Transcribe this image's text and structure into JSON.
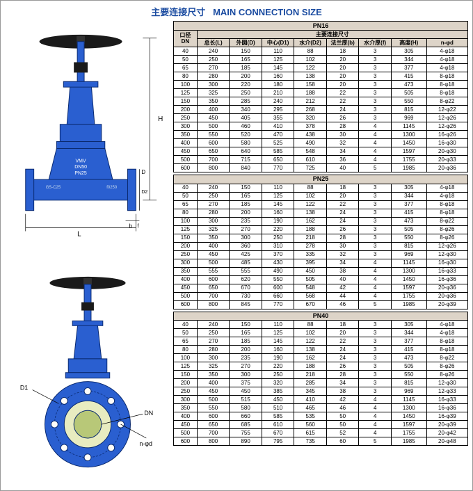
{
  "title_cn": "主要连接尺寸",
  "title_en": "MAIN CONNECTION SIZE",
  "diagram": {
    "labels": {
      "H": "H",
      "L": "L",
      "D": "D",
      "D1": "D1",
      "D2": "D2",
      "DN": "DN",
      "nphi": "n-φd"
    },
    "body_text": [
      "VMV",
      "DN50",
      "PN25"
    ],
    "cast_mark": "GS-C25",
    "flange_mark": "f0250",
    "valve_color": "#2a5fd0",
    "wheel_color": "#1a1a1a",
    "bg": "#fefcf8"
  },
  "header": {
    "dn_cn": "口径",
    "dn_en": "DN",
    "group_cn": "主要连接尺寸",
    "cols": [
      "总长(L)",
      "外圆(D)",
      "中心(D1)",
      "水介(D2)",
      "法兰厚(b)",
      "水介厚(f)",
      "高度(H)",
      "n-φd"
    ]
  },
  "sections": [
    {
      "name": "PN16",
      "rows": [
        [
          "40",
          "240",
          "150",
          "110",
          "88",
          "18",
          "3",
          "305",
          "4-φ18"
        ],
        [
          "50",
          "250",
          "165",
          "125",
          "102",
          "20",
          "3",
          "344",
          "4-φ18"
        ],
        [
          "65",
          "270",
          "185",
          "145",
          "122",
          "20",
          "3",
          "377",
          "4-φ18"
        ],
        [
          "80",
          "280",
          "200",
          "160",
          "138",
          "20",
          "3",
          "415",
          "8-φ18"
        ],
        [
          "100",
          "300",
          "220",
          "180",
          "158",
          "20",
          "3",
          "473",
          "8-φ18"
        ],
        [
          "125",
          "325",
          "250",
          "210",
          "188",
          "22",
          "3",
          "505",
          "8-φ18"
        ],
        [
          "150",
          "350",
          "285",
          "240",
          "212",
          "22",
          "3",
          "550",
          "8-φ22"
        ],
        [
          "200",
          "400",
          "340",
          "295",
          "268",
          "24",
          "3",
          "815",
          "12-φ22"
        ],
        [
          "250",
          "450",
          "405",
          "355",
          "320",
          "26",
          "3",
          "969",
          "12-φ26"
        ],
        [
          "300",
          "500",
          "460",
          "410",
          "378",
          "28",
          "4",
          "1145",
          "12-φ26"
        ],
        [
          "350",
          "550",
          "520",
          "470",
          "438",
          "30",
          "4",
          "1300",
          "16-φ26"
        ],
        [
          "400",
          "600",
          "580",
          "525",
          "490",
          "32",
          "4",
          "1450",
          "16-φ30"
        ],
        [
          "450",
          "650",
          "640",
          "585",
          "548",
          "34",
          "4",
          "1597",
          "20-φ30"
        ],
        [
          "500",
          "700",
          "715",
          "650",
          "610",
          "36",
          "4",
          "1755",
          "20-φ33"
        ],
        [
          "600",
          "800",
          "840",
          "770",
          "725",
          "40",
          "5",
          "1985",
          "20-φ36"
        ]
      ]
    },
    {
      "name": "PN25",
      "rows": [
        [
          "40",
          "240",
          "150",
          "110",
          "88",
          "18",
          "3",
          "305",
          "4-φ18"
        ],
        [
          "50",
          "250",
          "165",
          "125",
          "102",
          "20",
          "3",
          "344",
          "4-φ18"
        ],
        [
          "65",
          "270",
          "185",
          "145",
          "122",
          "22",
          "3",
          "377",
          "8-φ18"
        ],
        [
          "80",
          "280",
          "200",
          "160",
          "138",
          "24",
          "3",
          "415",
          "8-φ18"
        ],
        [
          "100",
          "300",
          "235",
          "190",
          "162",
          "24",
          "3",
          "473",
          "8-φ22"
        ],
        [
          "125",
          "325",
          "270",
          "220",
          "188",
          "26",
          "3",
          "505",
          "8-φ26"
        ],
        [
          "150",
          "350",
          "300",
          "250",
          "218",
          "28",
          "3",
          "550",
          "8-φ26"
        ],
        [
          "200",
          "400",
          "360",
          "310",
          "278",
          "30",
          "3",
          "815",
          "12-φ26"
        ],
        [
          "250",
          "450",
          "425",
          "370",
          "335",
          "32",
          "3",
          "969",
          "12-φ30"
        ],
        [
          "300",
          "500",
          "485",
          "430",
          "395",
          "34",
          "4",
          "1145",
          "16-φ30"
        ],
        [
          "350",
          "555",
          "555",
          "490",
          "450",
          "38",
          "4",
          "1300",
          "16-φ33"
        ],
        [
          "400",
          "600",
          "620",
          "550",
          "505",
          "40",
          "4",
          "1450",
          "16-φ36"
        ],
        [
          "450",
          "650",
          "670",
          "600",
          "548",
          "42",
          "4",
          "1597",
          "20-φ36"
        ],
        [
          "500",
          "700",
          "730",
          "660",
          "568",
          "44",
          "4",
          "1755",
          "20-φ36"
        ],
        [
          "600",
          "800",
          "845",
          "770",
          "670",
          "46",
          "5",
          "1985",
          "20-φ39"
        ]
      ]
    },
    {
      "name": "PN40",
      "rows": [
        [
          "40",
          "240",
          "150",
          "110",
          "88",
          "18",
          "3",
          "305",
          "4-φ18"
        ],
        [
          "50",
          "250",
          "165",
          "125",
          "102",
          "20",
          "3",
          "344",
          "4-φ18"
        ],
        [
          "65",
          "270",
          "185",
          "145",
          "122",
          "22",
          "3",
          "377",
          "8-φ18"
        ],
        [
          "80",
          "280",
          "200",
          "160",
          "138",
          "24",
          "3",
          "415",
          "8-φ18"
        ],
        [
          "100",
          "300",
          "235",
          "190",
          "162",
          "24",
          "3",
          "473",
          "8-φ22"
        ],
        [
          "125",
          "325",
          "270",
          "220",
          "188",
          "26",
          "3",
          "505",
          "8-φ26"
        ],
        [
          "150",
          "350",
          "300",
          "250",
          "218",
          "28",
          "3",
          "550",
          "8-φ26"
        ],
        [
          "200",
          "400",
          "375",
          "320",
          "285",
          "34",
          "3",
          "815",
          "12-φ30"
        ],
        [
          "250",
          "450",
          "450",
          "385",
          "345",
          "38",
          "3",
          "969",
          "12-φ33"
        ],
        [
          "300",
          "500",
          "515",
          "450",
          "410",
          "42",
          "4",
          "1145",
          "16-φ33"
        ],
        [
          "350",
          "550",
          "580",
          "510",
          "465",
          "46",
          "4",
          "1300",
          "16-φ36"
        ],
        [
          "400",
          "600",
          "660",
          "585",
          "535",
          "50",
          "4",
          "1450",
          "16-φ39"
        ],
        [
          "450",
          "650",
          "685",
          "610",
          "560",
          "50",
          "4",
          "1597",
          "20-φ39"
        ],
        [
          "500",
          "700",
          "755",
          "670",
          "615",
          "52",
          "4",
          "1755",
          "20-φ42"
        ],
        [
          "600",
          "800",
          "890",
          "795",
          "735",
          "60",
          "5",
          "1985",
          "20-φ48"
        ]
      ]
    }
  ]
}
